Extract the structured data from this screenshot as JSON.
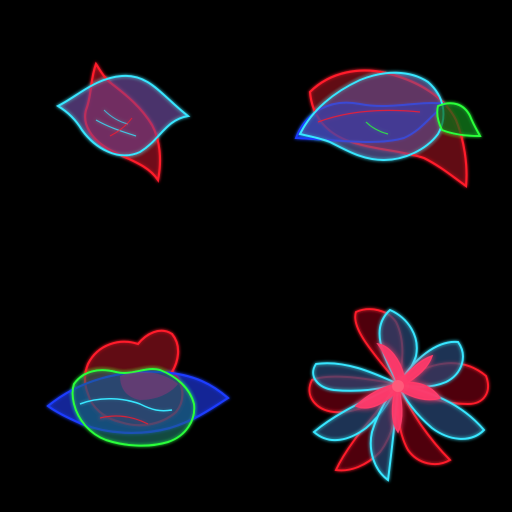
{
  "scene": {
    "background": "#000000",
    "layout": "2x2 grid",
    "colors": {
      "red": "#ff1a2a",
      "cyan": "#38e6ff",
      "blue": "#1f3cff",
      "green": "#2cff3a",
      "magenta": "#c0307a",
      "pink": "#ff3a6a"
    },
    "shapes": [
      {
        "name": "glow-leaf-shape-1",
        "style": "neon outline, translucent fill",
        "palette": [
          "red",
          "cyan"
        ]
      },
      {
        "name": "glow-leaf-shape-2",
        "style": "neon outline, translucent fill",
        "palette": [
          "red",
          "cyan",
          "blue",
          "green"
        ]
      },
      {
        "name": "glow-leaf-shape-3",
        "style": "neon outline, translucent fill",
        "palette": [
          "red",
          "blue",
          "green",
          "cyan"
        ]
      },
      {
        "name": "glow-flower-shape-4",
        "style": "neon outline, translucent fill",
        "palette": [
          "red",
          "cyan",
          "pink"
        ]
      }
    ]
  }
}
